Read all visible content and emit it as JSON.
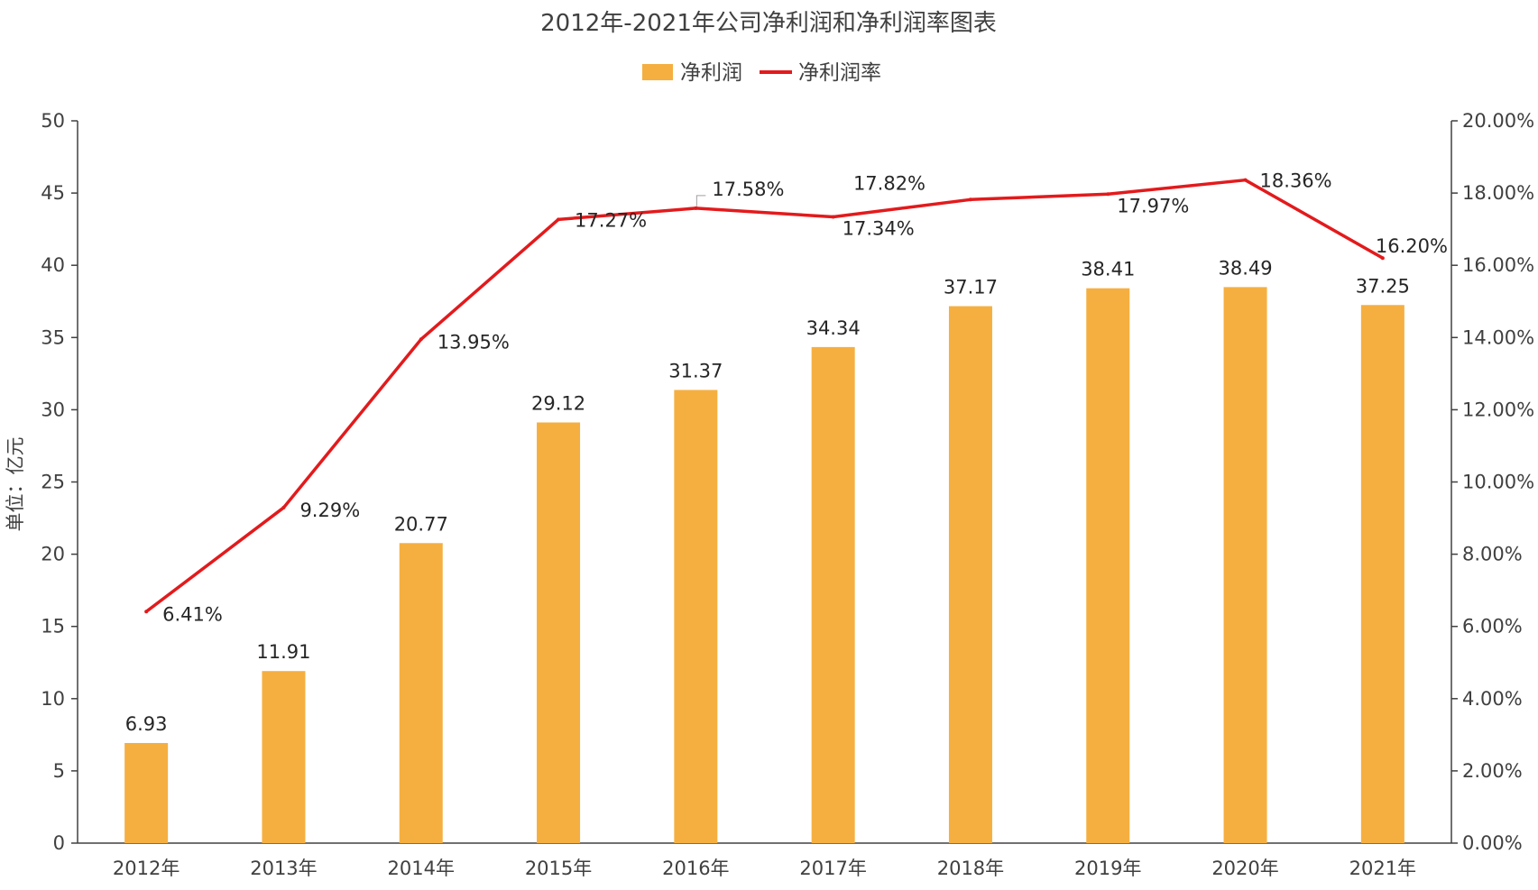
{
  "chart_data": {
    "type": "bar",
    "title": "2012年-2021年公司净利润和净利润率图表",
    "categories": [
      "2012年",
      "2013年",
      "2014年",
      "2015年",
      "2016年",
      "2017年",
      "2018年",
      "2019年",
      "2020年",
      "2021年"
    ],
    "ylabel": "单位：亿元",
    "ylim": [
      0,
      50
    ],
    "y_ticks": [
      "0",
      "5",
      "10",
      "15",
      "20",
      "25",
      "30",
      "35",
      "40",
      "45",
      "50"
    ],
    "y2lim": [
      0,
      20
    ],
    "y2_ticks": [
      "0.00%",
      "2.00%",
      "4.00%",
      "6.00%",
      "8.00%",
      "10.00%",
      "12.00%",
      "14.00%",
      "16.00%",
      "18.00%",
      "20.00%"
    ],
    "legend_position": "top-center",
    "grid": false,
    "series": [
      {
        "name": "净利润",
        "type": "bar",
        "axis": "left",
        "color": "#F5AF40",
        "values": [
          6.93,
          11.91,
          20.77,
          29.12,
          31.37,
          34.34,
          37.17,
          38.41,
          38.49,
          37.25
        ],
        "labels": [
          "6.93",
          "11.91",
          "20.77",
          "29.12",
          "31.37",
          "34.34",
          "37.17",
          "38.41",
          "38.49",
          "37.25"
        ]
      },
      {
        "name": "净利润率",
        "type": "line",
        "axis": "right",
        "color": "#E31A1C",
        "values": [
          6.41,
          9.29,
          13.95,
          17.27,
          17.58,
          17.34,
          17.82,
          17.97,
          18.36,
          16.2
        ],
        "labels": [
          "6.41%",
          "9.29%",
          "13.95%",
          "17.27%",
          "17.58%",
          "17.34%",
          "17.82%",
          "17.97%",
          "18.36%",
          "16.20%"
        ]
      }
    ]
  }
}
